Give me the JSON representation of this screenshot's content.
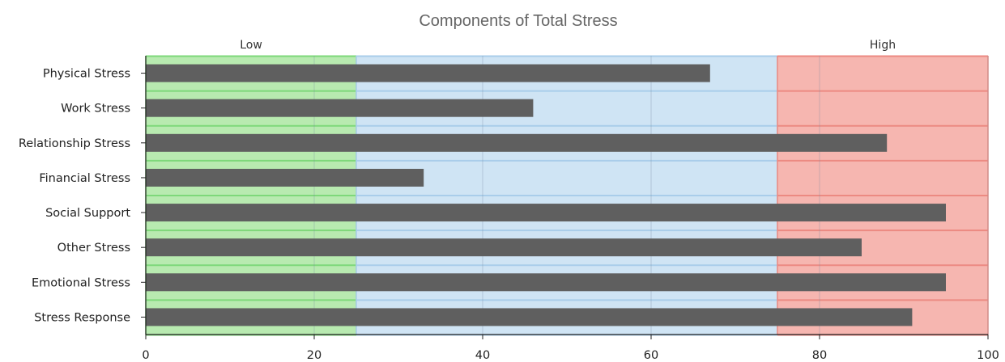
{
  "chart_data": {
    "type": "bar",
    "orientation": "horizontal",
    "title": "Components of Total Stress",
    "xlabel": "",
    "ylabel": "",
    "xlim": [
      0,
      100
    ],
    "x_ticks": [
      "0",
      "20",
      "40",
      "60",
      "80",
      "100"
    ],
    "grid": true,
    "categories": [
      "Physical Stress",
      "Work Stress",
      "Relationship Stress",
      "Financial Stress",
      "Social Support",
      "Other Stress",
      "Emotional Stress",
      "Stress Response"
    ],
    "values": [
      67,
      46,
      88,
      33,
      95,
      85,
      95,
      91
    ],
    "bar_color": "#5f5f5f",
    "bands": [
      {
        "label": "Low",
        "from": 0,
        "to": 25,
        "color": "#b8eab0",
        "line_color": "#7ed87a"
      },
      {
        "label": "",
        "from": 25,
        "to": 75,
        "color": "#cfe4f4",
        "line_color": "#a9cdea"
      },
      {
        "label": "High",
        "from": 75,
        "to": 100,
        "color": "#f6b6b0",
        "line_color": "#ec8a82"
      }
    ]
  }
}
